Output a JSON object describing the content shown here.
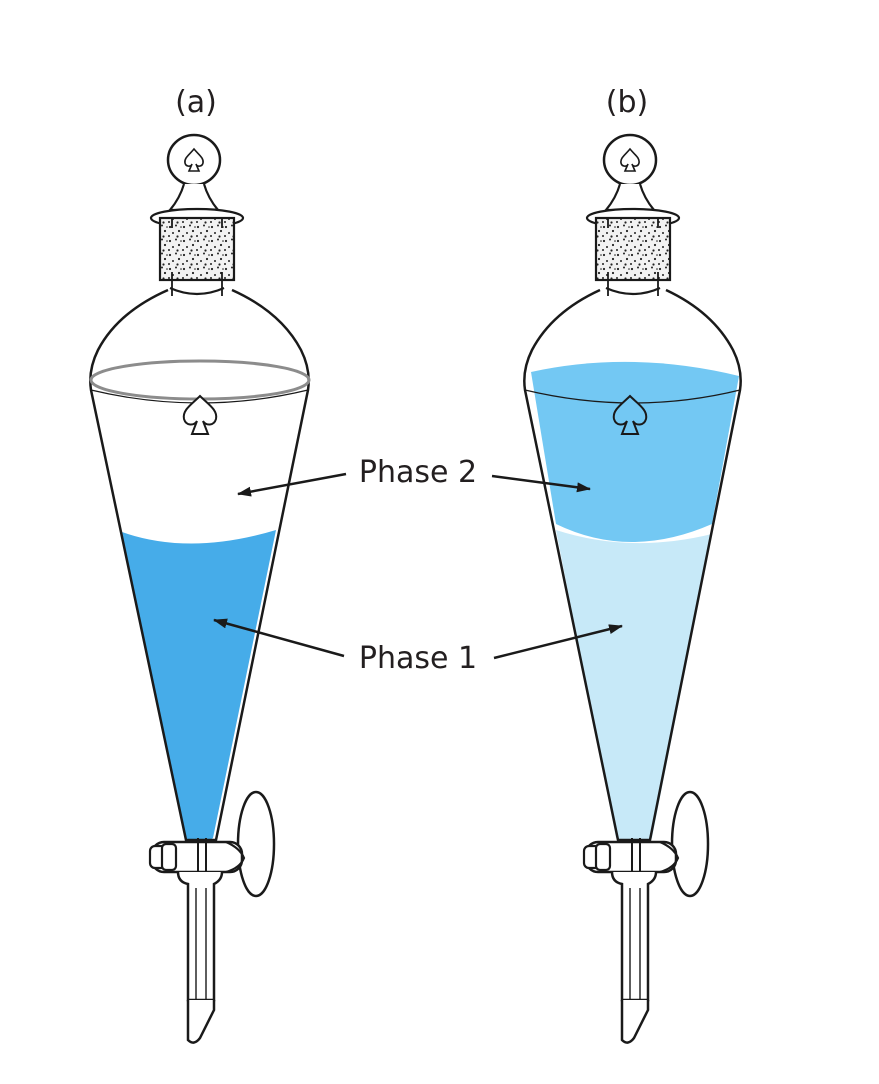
{
  "figure": {
    "panel_a": {
      "label": "(a)",
      "lower_phase_color": "#46ace9",
      "upper_phase_color": "#ffffff"
    },
    "panel_b": {
      "label": "(b)",
      "lower_phase_color": "#c7e9f8",
      "upper_phase_color": "#73c8f3"
    },
    "labels": {
      "phase2": "Phase 2",
      "phase1": "Phase 1"
    },
    "colors": {
      "outline": "#1a1a1a",
      "stopper_fill": "#eeeeee",
      "background": "#ffffff"
    }
  }
}
